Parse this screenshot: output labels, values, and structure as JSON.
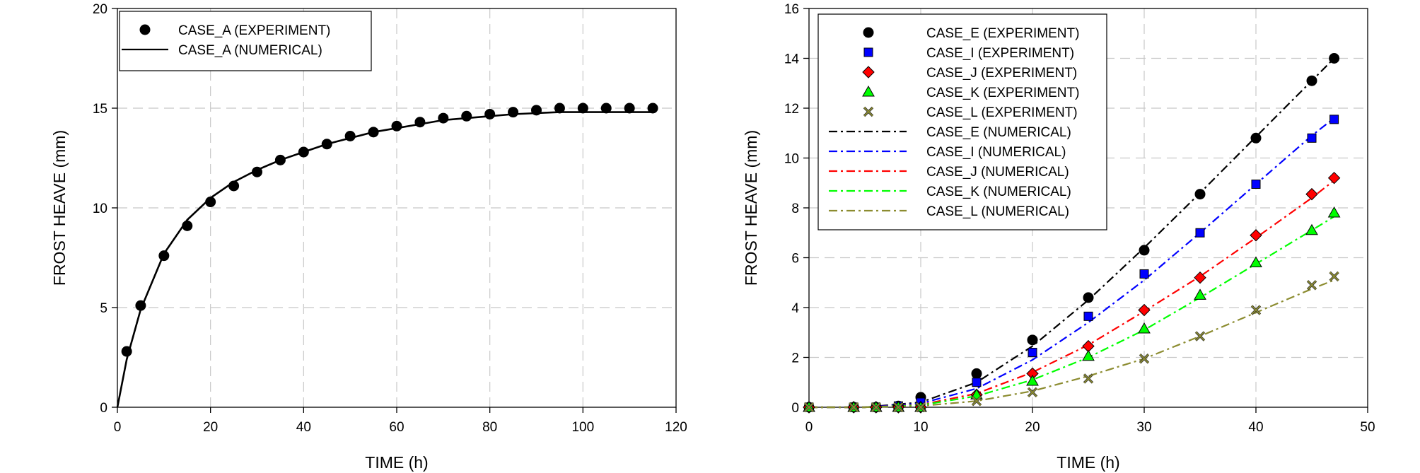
{
  "chart_data": [
    {
      "type": "line",
      "xlabel": "TIME (h)",
      "ylabel": "FROST HEAVE (mm)",
      "xlim": [
        0,
        120
      ],
      "ylim": [
        0,
        20
      ],
      "xticks": [
        0,
        20,
        40,
        60,
        80,
        100,
        120
      ],
      "yticks": [
        0,
        5,
        10,
        15,
        20
      ],
      "grid": true,
      "legend_position": "top-left",
      "series": [
        {
          "name": "CASE_A (EXPERIMENT)",
          "kind": "markers",
          "marker": "circle",
          "color": "#000000",
          "x": [
            2,
            5,
            10,
            15,
            20,
            25,
            30,
            35,
            40,
            45,
            50,
            55,
            60,
            65,
            70,
            75,
            80,
            85,
            90,
            95,
            100,
            105,
            110,
            115
          ],
          "y": [
            2.8,
            5.1,
            7.6,
            9.1,
            10.3,
            11.1,
            11.8,
            12.4,
            12.8,
            13.2,
            13.6,
            13.8,
            14.1,
            14.3,
            14.5,
            14.6,
            14.7,
            14.8,
            14.9,
            15.0,
            15.0,
            15.0,
            15.0,
            15.0
          ]
        },
        {
          "name": "CASE_A (NUMERICAL)",
          "kind": "line",
          "dash": "solid",
          "color": "#000000",
          "x": [
            0,
            2,
            5,
            10,
            15,
            20,
            25,
            30,
            35,
            40,
            45,
            50,
            55,
            60,
            65,
            70,
            75,
            80,
            85,
            90,
            95,
            100,
            105,
            110,
            115
          ],
          "y": [
            0,
            2.4,
            4.9,
            7.7,
            9.4,
            10.5,
            11.3,
            11.9,
            12.4,
            12.8,
            13.2,
            13.5,
            13.8,
            14.0,
            14.2,
            14.4,
            14.5,
            14.6,
            14.7,
            14.75,
            14.8,
            14.8,
            14.8,
            14.8,
            14.8
          ]
        }
      ]
    },
    {
      "type": "line",
      "xlabel": "TIME (h)",
      "ylabel": "FROST HEAVE (mm)",
      "xlim": [
        0,
        50
      ],
      "ylim": [
        0,
        16
      ],
      "xticks": [
        0,
        10,
        20,
        30,
        40,
        50
      ],
      "yticks": [
        0,
        2,
        4,
        6,
        8,
        10,
        12,
        14,
        16
      ],
      "grid": true,
      "legend_position": "top-left",
      "series": [
        {
          "name": "CASE_E (EXPERIMENT)",
          "kind": "markers",
          "marker": "circle",
          "color": "#000000",
          "x": [
            0,
            4,
            6,
            8,
            10,
            15,
            20,
            25,
            30,
            35,
            40,
            45,
            47
          ],
          "y": [
            0,
            0,
            0,
            0.05,
            0.4,
            1.35,
            2.7,
            4.4,
            6.3,
            8.55,
            10.8,
            13.1,
            14.0
          ]
        },
        {
          "name": "CASE_I  (EXPERIMENT)",
          "kind": "markers",
          "marker": "square",
          "color": "#0000ff",
          "x": [
            0,
            4,
            6,
            8,
            10,
            15,
            20,
            25,
            30,
            35,
            40,
            45,
            47
          ],
          "y": [
            0,
            0,
            0,
            0.05,
            0.2,
            1.0,
            2.2,
            3.65,
            5.35,
            7.0,
            8.95,
            10.8,
            11.55
          ]
        },
        {
          "name": "CASE_J (EXPERIMENT)",
          "kind": "markers",
          "marker": "diamond",
          "color": "#ff0000",
          "x": [
            0,
            4,
            6,
            8,
            10,
            15,
            20,
            25,
            30,
            35,
            40,
            45,
            47
          ],
          "y": [
            0,
            0,
            0,
            0,
            0,
            0.5,
            1.35,
            2.45,
            3.9,
            5.2,
            6.9,
            8.55,
            9.2
          ]
        },
        {
          "name": "CASE_K (EXPERIMENT)",
          "kind": "markers",
          "marker": "triangle",
          "color": "#00ff00",
          "x": [
            0,
            4,
            6,
            8,
            10,
            15,
            20,
            25,
            30,
            35,
            40,
            45,
            47
          ],
          "y": [
            0,
            0,
            0,
            0,
            0,
            0.5,
            1.05,
            2.05,
            3.15,
            4.5,
            5.8,
            7.1,
            7.8
          ]
        },
        {
          "name": "CASE_L (EXPERIMENT)",
          "kind": "markers",
          "marker": "x",
          "color": "#8c8c30",
          "x": [
            0,
            4,
            6,
            8,
            10,
            15,
            20,
            25,
            30,
            35,
            40,
            45,
            47
          ],
          "y": [
            0,
            0,
            0,
            0,
            0,
            0.25,
            0.6,
            1.15,
            1.95,
            2.85,
            3.9,
            4.9,
            5.25
          ]
        },
        {
          "name": "CASE_E (NUMERICAL)",
          "kind": "line",
          "dash": "dashdot",
          "color": "#000000",
          "x": [
            0,
            5,
            10,
            15,
            20,
            25,
            30,
            35,
            40,
            45,
            47
          ],
          "y": [
            0,
            0,
            0.2,
            1.0,
            2.45,
            4.3,
            6.4,
            8.6,
            10.85,
            13.1,
            14.0
          ]
        },
        {
          "name": "CASE_I  (NUMERICAL)",
          "kind": "line",
          "dash": "dashdot",
          "color": "#0000ff",
          "x": [
            0,
            5,
            10,
            15,
            20,
            25,
            30,
            35,
            40,
            45,
            47
          ],
          "y": [
            0,
            0,
            0.15,
            0.75,
            1.9,
            3.4,
            5.1,
            7.0,
            8.95,
            10.9,
            11.6
          ]
        },
        {
          "name": "CASE_J  (NUMERICAL)",
          "kind": "line",
          "dash": "dashdot",
          "color": "#ff0000",
          "x": [
            0,
            5,
            10,
            15,
            20,
            25,
            30,
            35,
            40,
            45,
            47
          ],
          "y": [
            0,
            0,
            0.1,
            0.55,
            1.4,
            2.5,
            3.85,
            5.25,
            6.8,
            8.4,
            9.1
          ]
        },
        {
          "name": "CASE_K  (NUMERICAL)",
          "kind": "line",
          "dash": "dashdot",
          "color": "#00ff00",
          "x": [
            0,
            5,
            10,
            15,
            20,
            25,
            30,
            35,
            40,
            45,
            47
          ],
          "y": [
            0,
            0,
            0.08,
            0.45,
            1.1,
            2.0,
            3.1,
            4.4,
            5.75,
            7.1,
            7.65
          ]
        },
        {
          "name": "CASE_L  (NUMERICAL)",
          "kind": "line",
          "dash": "dashdot",
          "color": "#8c8c30",
          "x": [
            0,
            5,
            10,
            15,
            20,
            25,
            30,
            35,
            40,
            45,
            47
          ],
          "y": [
            0,
            0,
            0.05,
            0.25,
            0.65,
            1.25,
            1.95,
            2.85,
            3.8,
            4.75,
            5.1
          ]
        }
      ]
    }
  ]
}
